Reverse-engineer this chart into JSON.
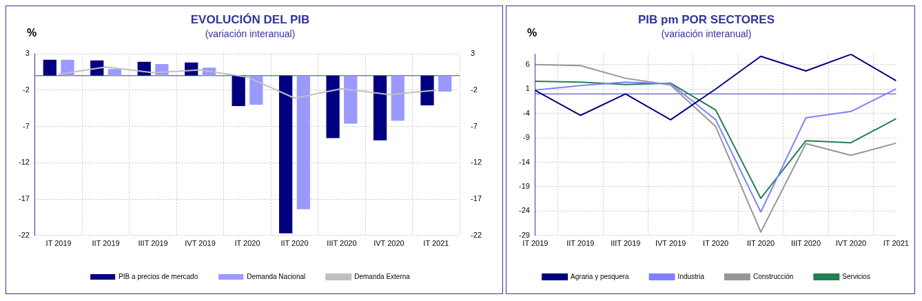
{
  "chart_data": [
    {
      "type": "bar",
      "title": "EVOLUCIÓN DEL PIB",
      "subtitle": "(variación interanual)",
      "ylabel": "%",
      "categories": [
        "IT 2019",
        "IIT 2019",
        "IIIT 2019",
        "IVT 2019",
        "IT 2020",
        "IIT 2020",
        "IIIT 2020",
        "IVT 2020",
        "IT 2021"
      ],
      "series": [
        {
          "name": "PIB a precios de mercado",
          "color": "#000080",
          "values": [
            2.2,
            2.1,
            1.9,
            1.8,
            -4.2,
            -21.7,
            -8.6,
            -8.9,
            -4.1
          ]
        },
        {
          "name": "Demanda Nacional",
          "color": "#9999ff",
          "values": [
            2.2,
            0.9,
            1.6,
            1.1,
            -4.0,
            -18.4,
            -6.6,
            -6.2,
            -2.2
          ]
        },
        {
          "name": "Demanda Externa",
          "type": "line",
          "color": "#c0c0c0",
          "values": [
            0.2,
            1.2,
            0.4,
            0.8,
            -0.2,
            -3.1,
            -1.8,
            -2.6,
            -2.0
          ]
        }
      ],
      "ylim": [
        -22,
        3
      ],
      "yticks": [
        3,
        -2,
        -7,
        -12,
        -17,
        -22
      ],
      "y2lim": [
        -22,
        3
      ],
      "y2ticks": [
        3,
        -2,
        -7,
        -12,
        -17,
        -22
      ],
      "grid": true,
      "legend": "bottom",
      "ref_lines": [
        {
          "axis": "y",
          "value": 0,
          "color": "#3333aa"
        }
      ]
    },
    {
      "type": "line",
      "title": "PIB pm POR SECTORES",
      "subtitle": "(variación interanual)",
      "ylabel": "%",
      "categories": [
        "IT 2019",
        "IIT 2019",
        "IIIT 2019",
        "IVT 2019",
        "IT 2020",
        "IIT 2020",
        "IIIT 2020",
        "IVT 2020",
        "IT 2021"
      ],
      "series": [
        {
          "name": "Agraria y pesquera",
          "color": "#000080",
          "values": [
            0.7,
            -4.4,
            0,
            -5.3,
            1.0,
            7.7,
            4.7,
            8.1,
            2.7
          ]
        },
        {
          "name": "Industria",
          "color": "#8080ff",
          "values": [
            0.8,
            1.7,
            2.4,
            2.1,
            -5.3,
            -24.2,
            -4.9,
            -3.6,
            1.0
          ]
        },
        {
          "name": "Construcción",
          "color": "#969696",
          "values": [
            6.0,
            5.8,
            3.2,
            1.8,
            -6.7,
            -28.3,
            -10.2,
            -12.6,
            -10.1
          ]
        },
        {
          "name": "Servicios",
          "color": "#208050",
          "values": [
            2.6,
            2.4,
            1.9,
            2.2,
            -3.3,
            -21.4,
            -9.6,
            -10.0,
            -5.1
          ]
        }
      ],
      "ylim": [
        -29,
        8.2
      ],
      "yticks": [
        6,
        1,
        -4,
        -9,
        -14,
        -19,
        -24,
        -29
      ],
      "grid": true,
      "legend": "bottom",
      "marker": "none",
      "ref_lines": [
        {
          "axis": "y",
          "value": 0,
          "color": "#3333aa"
        }
      ]
    }
  ]
}
